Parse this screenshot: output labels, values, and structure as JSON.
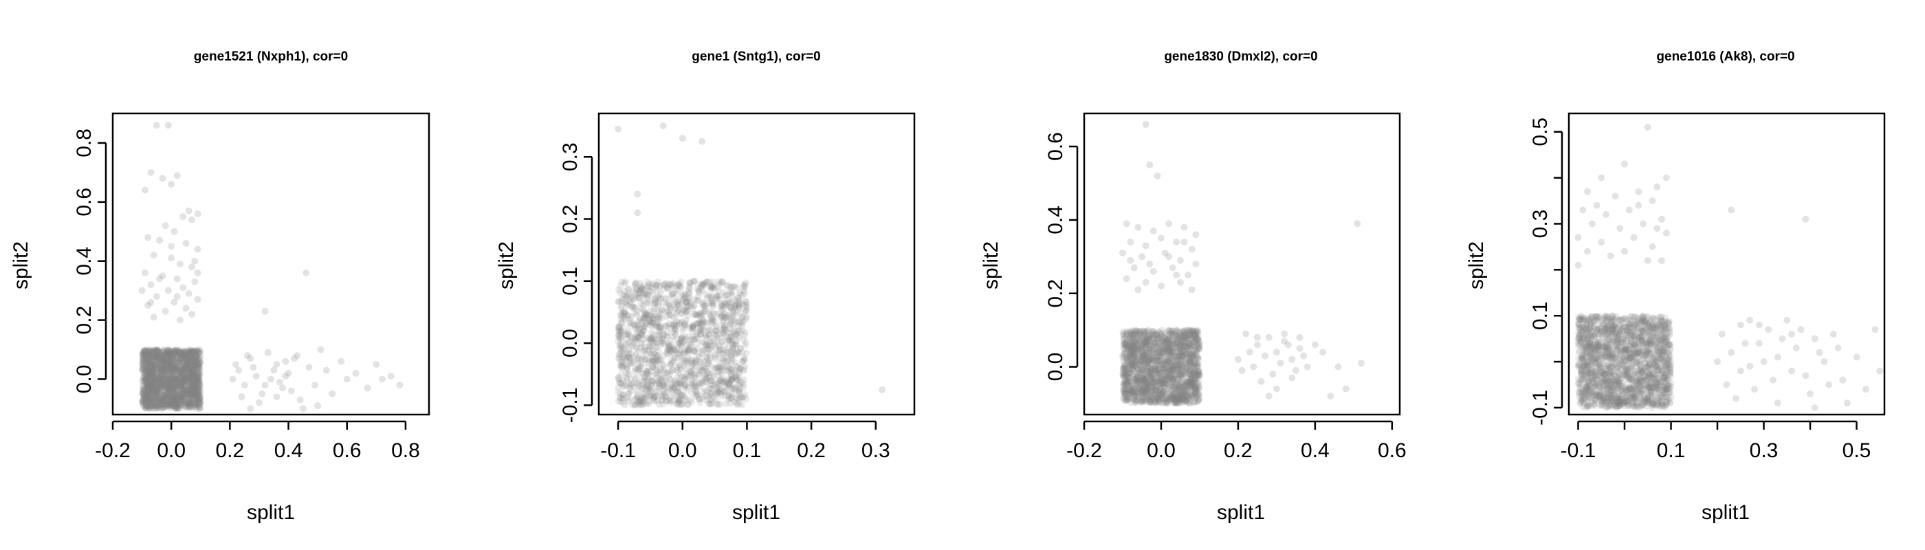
{
  "chart_data": [
    {
      "type": "scatter",
      "title": "gene1521 (Nxph1), cor=0",
      "xlabel": "split1",
      "ylabel": "split2",
      "xlim": [
        -0.2,
        0.88
      ],
      "ylim": [
        -0.12,
        0.9
      ],
      "xticks": [
        -0.2,
        0.0,
        0.2,
        0.4,
        0.6,
        0.8
      ],
      "xtick_labels": [
        "-0.2",
        "0.0",
        "0.2",
        "0.4",
        "0.6",
        "0.8"
      ],
      "yticks": [
        0.0,
        0.2,
        0.4,
        0.6,
        0.8
      ],
      "ytick_labels": [
        "0.0",
        "0.2",
        "0.4",
        "0.6",
        "0.8"
      ],
      "point_color": "#808080",
      "dense_block": {
        "x": [
          -0.1,
          0.1
        ],
        "y": [
          -0.1,
          0.1
        ],
        "count": 1800
      },
      "points": [
        [
          -0.05,
          0.86
        ],
        [
          -0.01,
          0.86
        ],
        [
          -0.07,
          0.7
        ],
        [
          -0.03,
          0.68
        ],
        [
          0.0,
          0.66
        ],
        [
          -0.09,
          0.64
        ],
        [
          0.02,
          0.69
        ],
        [
          0.06,
          0.57
        ],
        [
          0.09,
          0.56
        ],
        [
          0.04,
          0.55
        ],
        [
          0.07,
          0.54
        ],
        [
          -0.02,
          0.52
        ],
        [
          0.01,
          0.5
        ],
        [
          -0.08,
          0.48
        ],
        [
          -0.04,
          0.47
        ],
        [
          0.05,
          0.46
        ],
        [
          0.09,
          0.44
        ],
        [
          -0.06,
          0.42
        ],
        [
          0.0,
          0.41
        ],
        [
          0.03,
          0.39
        ],
        [
          0.07,
          0.38
        ],
        [
          -0.09,
          0.36
        ],
        [
          -0.03,
          0.35
        ],
        [
          0.02,
          0.34
        ],
        [
          0.08,
          0.33
        ],
        [
          -0.07,
          0.32
        ],
        [
          0.04,
          0.31
        ],
        [
          -0.01,
          0.3
        ],
        [
          0.06,
          0.29
        ],
        [
          -0.05,
          0.28
        ],
        [
          0.09,
          0.27
        ],
        [
          0.01,
          0.26
        ],
        [
          -0.08,
          0.25
        ],
        [
          0.05,
          0.24
        ],
        [
          -0.02,
          0.23
        ],
        [
          0.07,
          0.22
        ],
        [
          -0.06,
          0.21
        ],
        [
          0.03,
          0.2
        ],
        [
          -0.04,
          0.34
        ],
        [
          0.08,
          0.4
        ],
        [
          -0.1,
          0.3
        ],
        [
          0.0,
          0.45
        ],
        [
          0.02,
          0.28
        ],
        [
          -0.07,
          0.26
        ],
        [
          0.09,
          0.36
        ],
        [
          0.46,
          0.36
        ],
        [
          0.32,
          0.23
        ],
        [
          0.22,
          0.05
        ],
        [
          0.25,
          -0.02
        ],
        [
          0.27,
          0.07
        ],
        [
          0.29,
          0.01
        ],
        [
          0.31,
          -0.05
        ],
        [
          0.33,
          0.09
        ],
        [
          0.35,
          0.03
        ],
        [
          0.37,
          -0.01
        ],
        [
          0.39,
          0.06
        ],
        [
          0.41,
          -0.04
        ],
        [
          0.43,
          0.08
        ],
        [
          0.24,
          -0.06
        ],
        [
          0.28,
          0.04
        ],
        [
          0.3,
          -0.08
        ],
        [
          0.34,
          0.0
        ],
        [
          0.36,
          0.05
        ],
        [
          0.38,
          -0.03
        ],
        [
          0.4,
          0.02
        ],
        [
          0.42,
          0.07
        ],
        [
          0.44,
          -0.07
        ],
        [
          0.21,
          0.0
        ],
        [
          0.23,
          0.03
        ],
        [
          0.26,
          0.08
        ],
        [
          0.32,
          -0.02
        ],
        [
          0.36,
          -0.06
        ],
        [
          0.39,
          0.01
        ],
        [
          0.47,
          0.04
        ],
        [
          0.49,
          -0.02
        ],
        [
          0.51,
          0.1
        ],
        [
          0.53,
          0.03
        ],
        [
          0.55,
          -0.05
        ],
        [
          0.58,
          0.06
        ],
        [
          0.6,
          0.0
        ],
        [
          0.63,
          0.02
        ],
        [
          0.67,
          -0.03
        ],
        [
          0.7,
          0.05
        ],
        [
          0.72,
          0.0
        ],
        [
          0.75,
          0.01
        ],
        [
          0.78,
          -0.02
        ],
        [
          0.5,
          -0.09
        ],
        [
          0.45,
          -0.1
        ],
        [
          0.27,
          -0.1
        ]
      ]
    },
    {
      "type": "scatter",
      "title": "gene1 (Sntg1), cor=0",
      "xlabel": "split1",
      "ylabel": "split2",
      "xlim": [
        -0.13,
        0.36
      ],
      "ylim": [
        -0.115,
        0.37
      ],
      "xticks": [
        -0.1,
        0.0,
        0.1,
        0.2,
        0.3
      ],
      "xtick_labels": [
        "-0.1",
        "0.0",
        "0.1",
        "0.2",
        "0.3"
      ],
      "yticks": [
        -0.1,
        0.0,
        0.1,
        0.2,
        0.3
      ],
      "ytick_labels": [
        "-0.1",
        "0.0",
        "0.1",
        "0.2",
        "0.3"
      ],
      "point_color": "#808080",
      "dense_block": {
        "x": [
          -0.1,
          0.1
        ],
        "y": [
          -0.1,
          0.1
        ],
        "count": 1500
      },
      "points": [
        [
          -0.1,
          0.345
        ],
        [
          -0.03,
          0.35
        ],
        [
          0.0,
          0.33
        ],
        [
          0.03,
          0.325
        ],
        [
          -0.07,
          0.24
        ],
        [
          -0.07,
          0.21
        ],
        [
          0.31,
          -0.075
        ]
      ]
    },
    {
      "type": "scatter",
      "title": "gene1830 (Dmxl2), cor=0",
      "xlabel": "split1",
      "ylabel": "split2",
      "xlim": [
        -0.2,
        0.62
      ],
      "ylim": [
        -0.13,
        0.69
      ],
      "xticks": [
        -0.2,
        0.0,
        0.2,
        0.4,
        0.6
      ],
      "xtick_labels": [
        "-0.2",
        "0.0",
        "0.2",
        "0.4",
        "0.6"
      ],
      "yticks": [
        0.0,
        0.2,
        0.4,
        0.6
      ],
      "ytick_labels": [
        "0.0",
        "0.2",
        "0.4",
        "0.6"
      ],
      "point_color": "#808080",
      "dense_block": {
        "x": [
          -0.1,
          0.1
        ],
        "y": [
          -0.1,
          0.1
        ],
        "count": 1800
      },
      "points": [
        [
          -0.04,
          0.66
        ],
        [
          -0.03,
          0.55
        ],
        [
          -0.01,
          0.52
        ],
        [
          -0.09,
          0.39
        ],
        [
          -0.06,
          0.38
        ],
        [
          -0.02,
          0.37
        ],
        [
          0.02,
          0.39
        ],
        [
          0.06,
          0.38
        ],
        [
          0.09,
          0.36
        ],
        [
          -0.08,
          0.34
        ],
        [
          -0.04,
          0.33
        ],
        [
          0.0,
          0.35
        ],
        [
          0.04,
          0.34
        ],
        [
          0.08,
          0.32
        ],
        [
          -0.1,
          0.31
        ],
        [
          -0.05,
          0.3
        ],
        [
          0.01,
          0.31
        ],
        [
          0.05,
          0.29
        ],
        [
          0.09,
          0.28
        ],
        [
          -0.07,
          0.27
        ],
        [
          -0.02,
          0.26
        ],
        [
          0.03,
          0.27
        ],
        [
          0.07,
          0.25
        ],
        [
          -0.09,
          0.24
        ],
        [
          -0.04,
          0.23
        ],
        [
          0.0,
          0.22
        ],
        [
          0.05,
          0.23
        ],
        [
          0.08,
          0.21
        ],
        [
          -0.06,
          0.21
        ],
        [
          0.02,
          0.3
        ],
        [
          -0.03,
          0.28
        ],
        [
          0.06,
          0.34
        ],
        [
          -0.08,
          0.29
        ],
        [
          0.04,
          0.25
        ],
        [
          0.22,
          0.09
        ],
        [
          0.25,
          0.06
        ],
        [
          0.28,
          0.08
        ],
        [
          0.3,
          0.04
        ],
        [
          0.32,
          0.07
        ],
        [
          0.34,
          0.02
        ],
        [
          0.36,
          0.05
        ],
        [
          0.24,
          0.0
        ],
        [
          0.27,
          0.03
        ],
        [
          0.29,
          -0.02
        ],
        [
          0.31,
          0.01
        ],
        [
          0.33,
          0.06
        ],
        [
          0.35,
          -0.01
        ],
        [
          0.37,
          0.03
        ],
        [
          0.23,
          0.04
        ],
        [
          0.26,
          -0.04
        ],
        [
          0.3,
          -0.06
        ],
        [
          0.34,
          -0.03
        ],
        [
          0.38,
          0.0
        ],
        [
          0.2,
          0.02
        ],
        [
          0.21,
          -0.01
        ],
        [
          0.4,
          0.06
        ],
        [
          0.42,
          0.04
        ],
        [
          0.44,
          -0.08
        ],
        [
          0.46,
          0.0
        ],
        [
          0.48,
          -0.06
        ],
        [
          0.52,
          0.01
        ],
        [
          0.51,
          0.39
        ],
        [
          0.28,
          -0.08
        ],
        [
          0.32,
          0.09
        ],
        [
          0.36,
          0.08
        ],
        [
          0.25,
          0.08
        ]
      ]
    },
    {
      "type": "scatter",
      "title": "gene1016 (Ak8), cor=0",
      "xlabel": "split1",
      "ylabel": "split2",
      "xlim": [
        -0.12,
        0.56
      ],
      "ylim": [
        -0.115,
        0.54
      ],
      "xticks": [
        -0.1,
        0.1,
        0.3,
        0.5
      ],
      "xtick_labels": [
        "-0.1",
        "0.1",
        "0.3",
        "0.5"
      ],
      "xticks_minor": [
        0.0,
        0.2,
        0.4
      ],
      "yticks": [
        -0.1,
        0.1,
        0.3,
        0.5
      ],
      "ytick_labels": [
        "-0.1",
        "0.1",
        "0.3",
        "0.5"
      ],
      "yticks_minor": [
        0.0,
        0.2,
        0.4
      ],
      "point_color": "#808080",
      "dense_block": {
        "x": [
          -0.1,
          0.1
        ],
        "y": [
          -0.1,
          0.1
        ],
        "count": 1800
      },
      "points": [
        [
          0.05,
          0.51
        ],
        [
          0.0,
          0.43
        ],
        [
          0.07,
          0.38
        ],
        [
          0.09,
          0.4
        ],
        [
          -0.05,
          0.4
        ],
        [
          -0.08,
          0.37
        ],
        [
          -0.02,
          0.36
        ],
        [
          0.03,
          0.37
        ],
        [
          0.06,
          0.35
        ],
        [
          -0.09,
          0.33
        ],
        [
          -0.04,
          0.32
        ],
        [
          0.01,
          0.33
        ],
        [
          0.08,
          0.31
        ],
        [
          -0.07,
          0.3
        ],
        [
          -0.01,
          0.29
        ],
        [
          0.04,
          0.3
        ],
        [
          0.09,
          0.28
        ],
        [
          -0.1,
          0.27
        ],
        [
          -0.05,
          0.26
        ],
        [
          0.02,
          0.27
        ],
        [
          0.06,
          0.25
        ],
        [
          -0.08,
          0.24
        ],
        [
          -0.03,
          0.23
        ],
        [
          0.05,
          0.22
        ],
        [
          -0.1,
          0.21
        ],
        [
          0.0,
          0.24
        ],
        [
          0.07,
          0.29
        ],
        [
          -0.06,
          0.34
        ],
        [
          0.03,
          0.34
        ],
        [
          0.08,
          0.22
        ],
        [
          0.23,
          0.33
        ],
        [
          0.39,
          0.31
        ],
        [
          0.21,
          0.06
        ],
        [
          0.23,
          0.02
        ],
        [
          0.25,
          0.08
        ],
        [
          0.27,
          -0.01
        ],
        [
          0.29,
          0.04
        ],
        [
          0.31,
          0.07
        ],
        [
          0.33,
          0.01
        ],
        [
          0.35,
          0.09
        ],
        [
          0.37,
          0.03
        ],
        [
          0.39,
          -0.03
        ],
        [
          0.41,
          0.05
        ],
        [
          0.43,
          0.0
        ],
        [
          0.45,
          0.06
        ],
        [
          0.22,
          -0.05
        ],
        [
          0.24,
          -0.08
        ],
        [
          0.26,
          0.04
        ],
        [
          0.28,
          -0.06
        ],
        [
          0.3,
          0.0
        ],
        [
          0.32,
          -0.04
        ],
        [
          0.34,
          0.05
        ],
        [
          0.36,
          -0.02
        ],
        [
          0.38,
          0.07
        ],
        [
          0.4,
          -0.07
        ],
        [
          0.42,
          0.02
        ],
        [
          0.44,
          -0.05
        ],
        [
          0.46,
          0.03
        ],
        [
          0.48,
          -0.09
        ],
        [
          0.5,
          0.01
        ],
        [
          0.52,
          -0.06
        ],
        [
          0.54,
          0.07
        ],
        [
          0.55,
          -0.02
        ],
        [
          0.2,
          0.0
        ],
        [
          0.27,
          0.09
        ],
        [
          0.33,
          -0.09
        ],
        [
          0.47,
          -0.04
        ],
        [
          0.36,
          0.06
        ],
        [
          0.29,
          0.08
        ],
        [
          0.41,
          -0.1
        ],
        [
          0.25,
          -0.02
        ]
      ]
    }
  ]
}
